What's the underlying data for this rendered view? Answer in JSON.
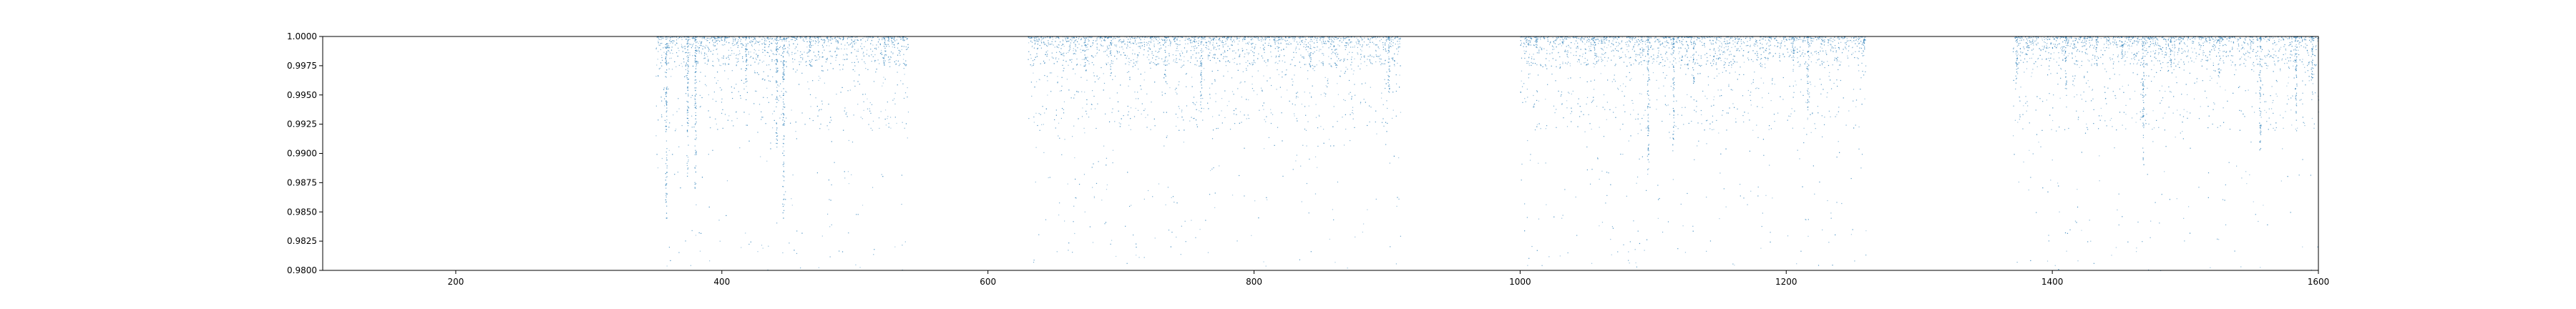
{
  "chart_data": {
    "type": "scatter",
    "title": "",
    "xlabel": "",
    "ylabel": "",
    "xlim": [
      100,
      1600
    ],
    "ylim": [
      0.98,
      1.0
    ],
    "x_ticks": [
      200,
      400,
      600,
      800,
      1000,
      1200,
      1400,
      1600
    ],
    "x_tick_labels": [
      "200",
      "400",
      "600",
      "800",
      "1000",
      "1200",
      "1400",
      "1600"
    ],
    "y_ticks": [
      0.98,
      0.9825,
      0.985,
      0.9875,
      0.99,
      0.9925,
      0.995,
      0.9975,
      1.0
    ],
    "y_tick_labels": [
      "0.9800",
      "0.9825",
      "0.9850",
      "0.9875",
      "0.9900",
      "0.9925",
      "0.9950",
      "0.9975",
      "1.0000"
    ],
    "grid": false,
    "marker_color": "#1f77b4",
    "series": [
      {
        "clusters": [
          {
            "x_range": [
              350,
              540
            ],
            "density": 1.0
          },
          {
            "x_range": [
              630,
              910
            ],
            "density": 1.0
          },
          {
            "x_range": [
              1000,
              1260
            ],
            "density": 1.0
          },
          {
            "x_range": [
              1370,
              1600
            ],
            "density": 1.0
          }
        ],
        "vertical_streaks": [
          {
            "x": 358,
            "y_min": 0.9845
          },
          {
            "x": 374,
            "y_min": 0.988
          },
          {
            "x": 380,
            "y_min": 0.9855
          },
          {
            "x": 418,
            "y_min": 0.996
          },
          {
            "x": 441,
            "y_min": 0.9905
          },
          {
            "x": 446,
            "y_min": 0.9845
          },
          {
            "x": 466,
            "y_min": 0.9975
          },
          {
            "x": 522,
            "y_min": 0.9975
          },
          {
            "x": 673,
            "y_min": 0.997
          },
          {
            "x": 692,
            "y_min": 0.9965
          },
          {
            "x": 733,
            "y_min": 0.996
          },
          {
            "x": 760,
            "y_min": 0.9935
          },
          {
            "x": 842,
            "y_min": 0.997
          },
          {
            "x": 901,
            "y_min": 0.995
          },
          {
            "x": 1012,
            "y_min": 0.999
          },
          {
            "x": 1056,
            "y_min": 0.9985
          },
          {
            "x": 1096,
            "y_min": 0.988
          },
          {
            "x": 1115,
            "y_min": 0.99
          },
          {
            "x": 1130,
            "y_min": 0.996
          },
          {
            "x": 1205,
            "y_min": 0.997
          },
          {
            "x": 1216,
            "y_min": 0.9935
          },
          {
            "x": 1258,
            "y_min": 0.999
          },
          {
            "x": 1373,
            "y_min": 0.996
          },
          {
            "x": 1410,
            "y_min": 0.9955
          },
          {
            "x": 1433,
            "y_min": 0.9975
          },
          {
            "x": 1452,
            "y_min": 0.9985
          },
          {
            "x": 1468,
            "y_min": 0.989
          },
          {
            "x": 1489,
            "y_min": 0.9975
          },
          {
            "x": 1525,
            "y_min": 0.9965
          },
          {
            "x": 1556,
            "y_min": 0.99
          },
          {
            "x": 1583,
            "y_min": 0.993
          },
          {
            "x": 1595,
            "y_min": 0.996
          }
        ],
        "sample_points": [
          [
            352,
            0.9995
          ],
          [
            356,
            0.9955
          ],
          [
            358,
            0.9845
          ],
          [
            372,
            0.999
          ],
          [
            378,
            0.9975
          ],
          [
            385,
            0.988
          ],
          [
            405,
            0.9995
          ],
          [
            418,
            0.9985
          ],
          [
            441,
            0.9915
          ],
          [
            446,
            0.9845
          ],
          [
            460,
            0.9985
          ],
          [
            475,
            0.9975
          ],
          [
            491,
            0.9998
          ],
          [
            505,
            0.999
          ],
          [
            520,
            0.9985
          ],
          [
            535,
            0.9992
          ],
          [
            640,
            0.9995
          ],
          [
            655,
            0.9985
          ],
          [
            672,
            0.9975
          ],
          [
            690,
            0.999
          ],
          [
            700,
            0.993
          ],
          [
            732,
            0.9965
          ],
          [
            752,
            0.9995
          ],
          [
            760,
            0.995
          ],
          [
            775,
            0.9985
          ],
          [
            800,
            0.999
          ],
          [
            842,
            0.9975
          ],
          [
            860,
            0.9992
          ],
          [
            880,
            0.9985
          ],
          [
            899,
            0.996
          ],
          [
            905,
            0.9898
          ],
          [
            1010,
            0.9993
          ],
          [
            1035,
            0.9985
          ],
          [
            1056,
            0.9995
          ],
          [
            1080,
            0.9975
          ],
          [
            1096,
            0.9905
          ],
          [
            1115,
            0.9923
          ],
          [
            1130,
            0.9965
          ],
          [
            1150,
            0.9985
          ],
          [
            1180,
            0.999
          ],
          [
            1205,
            0.998
          ],
          [
            1216,
            0.994
          ],
          [
            1230,
            0.9985
          ],
          [
            1258,
            0.9995
          ],
          [
            1373,
            0.997
          ],
          [
            1390,
            0.999
          ],
          [
            1410,
            0.996
          ],
          [
            1433,
            0.998
          ],
          [
            1452,
            0.9992
          ],
          [
            1468,
            0.9895
          ],
          [
            1489,
            0.998
          ],
          [
            1510,
            0.9985
          ],
          [
            1525,
            0.997
          ],
          [
            1556,
            0.991
          ],
          [
            1570,
            0.9988
          ],
          [
            1583,
            0.9935
          ],
          [
            1595,
            0.9965
          ]
        ]
      }
    ]
  }
}
